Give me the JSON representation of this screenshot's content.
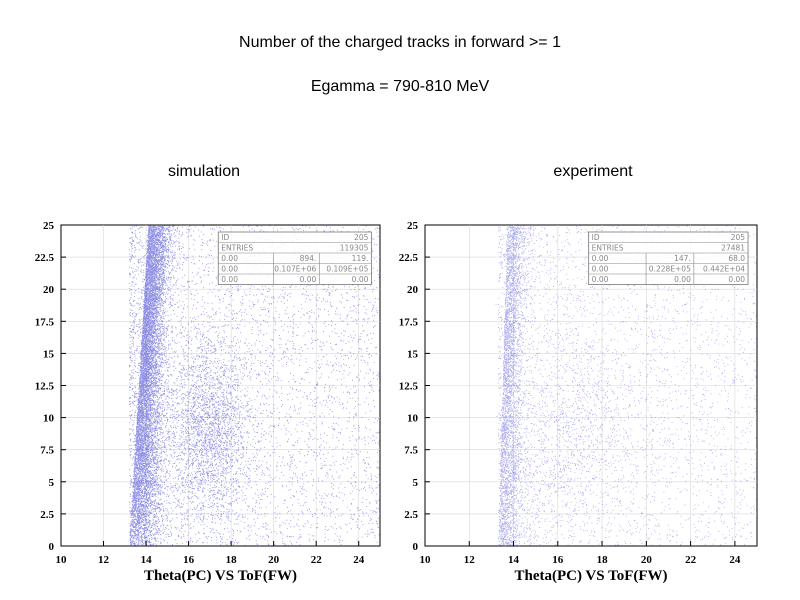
{
  "header": {
    "title_line1": "Number of the charged tracks in forward >= 1",
    "title_line2": "Egamma = 790-810 MeV"
  },
  "chart_data": [
    {
      "type": "scatter",
      "panel_label": "simulation",
      "xlabel": "Theta(PC) VS ToF(FW)",
      "ylabel": "",
      "xlim": [
        10,
        25
      ],
      "ylim": [
        0,
        25
      ],
      "x_ticks": [
        "10",
        "12",
        "14",
        "16",
        "18",
        "20",
        "22",
        "24"
      ],
      "y_ticks": [
        "0",
        "2.5",
        "5",
        "7.5",
        "10",
        "12.5",
        "15",
        "17.5",
        "20",
        "22.5",
        "25"
      ],
      "grid": true,
      "point_color": "#3a3ad0",
      "stats_box": [
        [
          "ID",
          "",
          "205"
        ],
        [
          "ENTRIES",
          "",
          "119305"
        ],
        [
          "0.00",
          "894.",
          "119."
        ],
        [
          "0.00",
          "0.107E+06",
          "0.109E+05"
        ],
        [
          "0.00",
          "0.00",
          "0.00"
        ]
      ],
      "density_model": {
        "ridge_onset_x": 13.2,
        "ridge_width": 0.7,
        "ridge_density_peak_y": 18,
        "secondary_cluster": {
          "x": 17,
          "y": 9,
          "sx": 0.9,
          "sy": 3.5
        },
        "background_level": "medium"
      }
    },
    {
      "type": "scatter",
      "panel_label": "experiment",
      "xlabel": "Theta(PC) VS ToF(FW)",
      "ylabel": "",
      "xlim": [
        10,
        25
      ],
      "ylim": [
        0,
        25
      ],
      "x_ticks": [
        "10",
        "12",
        "14",
        "16",
        "18",
        "20",
        "22",
        "24"
      ],
      "y_ticks": [
        "0",
        "2.5",
        "5",
        "7.5",
        "10",
        "12.5",
        "15",
        "17.5",
        "20",
        "22.5",
        "25"
      ],
      "grid": true,
      "point_color": "#4a4ad8",
      "stats_box": [
        [
          "ID",
          "",
          "205"
        ],
        [
          "ENTRIES",
          "",
          "27481"
        ],
        [
          "0.00",
          "147.",
          "68.0"
        ],
        [
          "0.00",
          "0.228E+05",
          "0.442E+04"
        ],
        [
          "0.00",
          "0.00",
          "0.00"
        ]
      ],
      "density_model": {
        "ridge_onset_x": 13.3,
        "ridge_width": 0.6,
        "ridge_density_peak_y": 15,
        "secondary_cluster": {
          "x": 16.5,
          "y": 9,
          "sx": 1.5,
          "sy": 4
        },
        "background_level": "low"
      }
    }
  ]
}
